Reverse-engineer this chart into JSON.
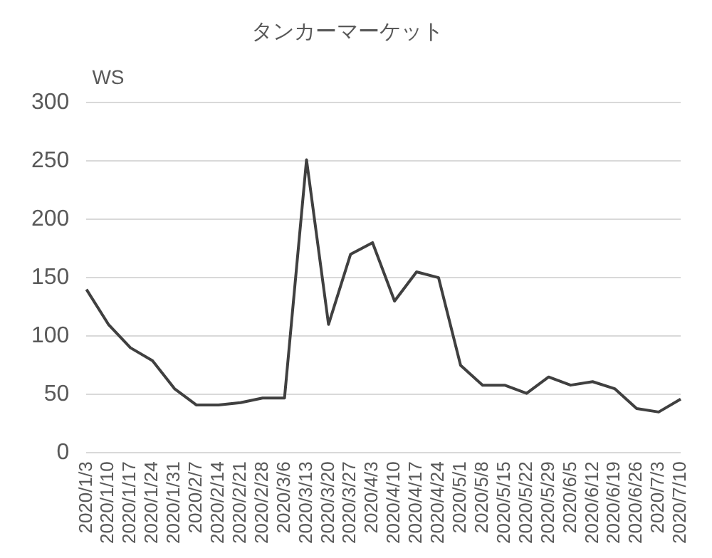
{
  "chart_data": {
    "type": "line",
    "title": "タンカーマーケット",
    "ylabel": "WS",
    "categories": [
      "2020/1/3",
      "2020/1/10",
      "2020/1/17",
      "2020/1/24",
      "2020/1/31",
      "2020/2/7",
      "2020/2/14",
      "2020/2/21",
      "2020/2/28",
      "2020/3/6",
      "2020/3/13",
      "2020/3/20",
      "2020/3/27",
      "2020/4/3",
      "2020/4/10",
      "2020/4/17",
      "2020/4/24",
      "2020/5/1",
      "2020/5/8",
      "2020/5/15",
      "2020/5/22",
      "2020/5/29",
      "2020/6/5",
      "2020/6/12",
      "2020/6/19",
      "2020/6/26",
      "2020/7/3",
      "2020/7/10"
    ],
    "series": [
      {
        "color": "#404040",
        "values": [
          140,
          110,
          90,
          79,
          55,
          41,
          41,
          43,
          47,
          47,
          251,
          110,
          170,
          180,
          130,
          155,
          150,
          75,
          58,
          58,
          51,
          65,
          58,
          61,
          55,
          38,
          35,
          46
        ]
      }
    ],
    "ylim": [
      0,
      300
    ],
    "yticks": [
      0,
      50,
      100,
      150,
      200,
      250,
      300
    ],
    "grid": "y",
    "legend": false,
    "marker": "none",
    "line_style": "solid"
  }
}
